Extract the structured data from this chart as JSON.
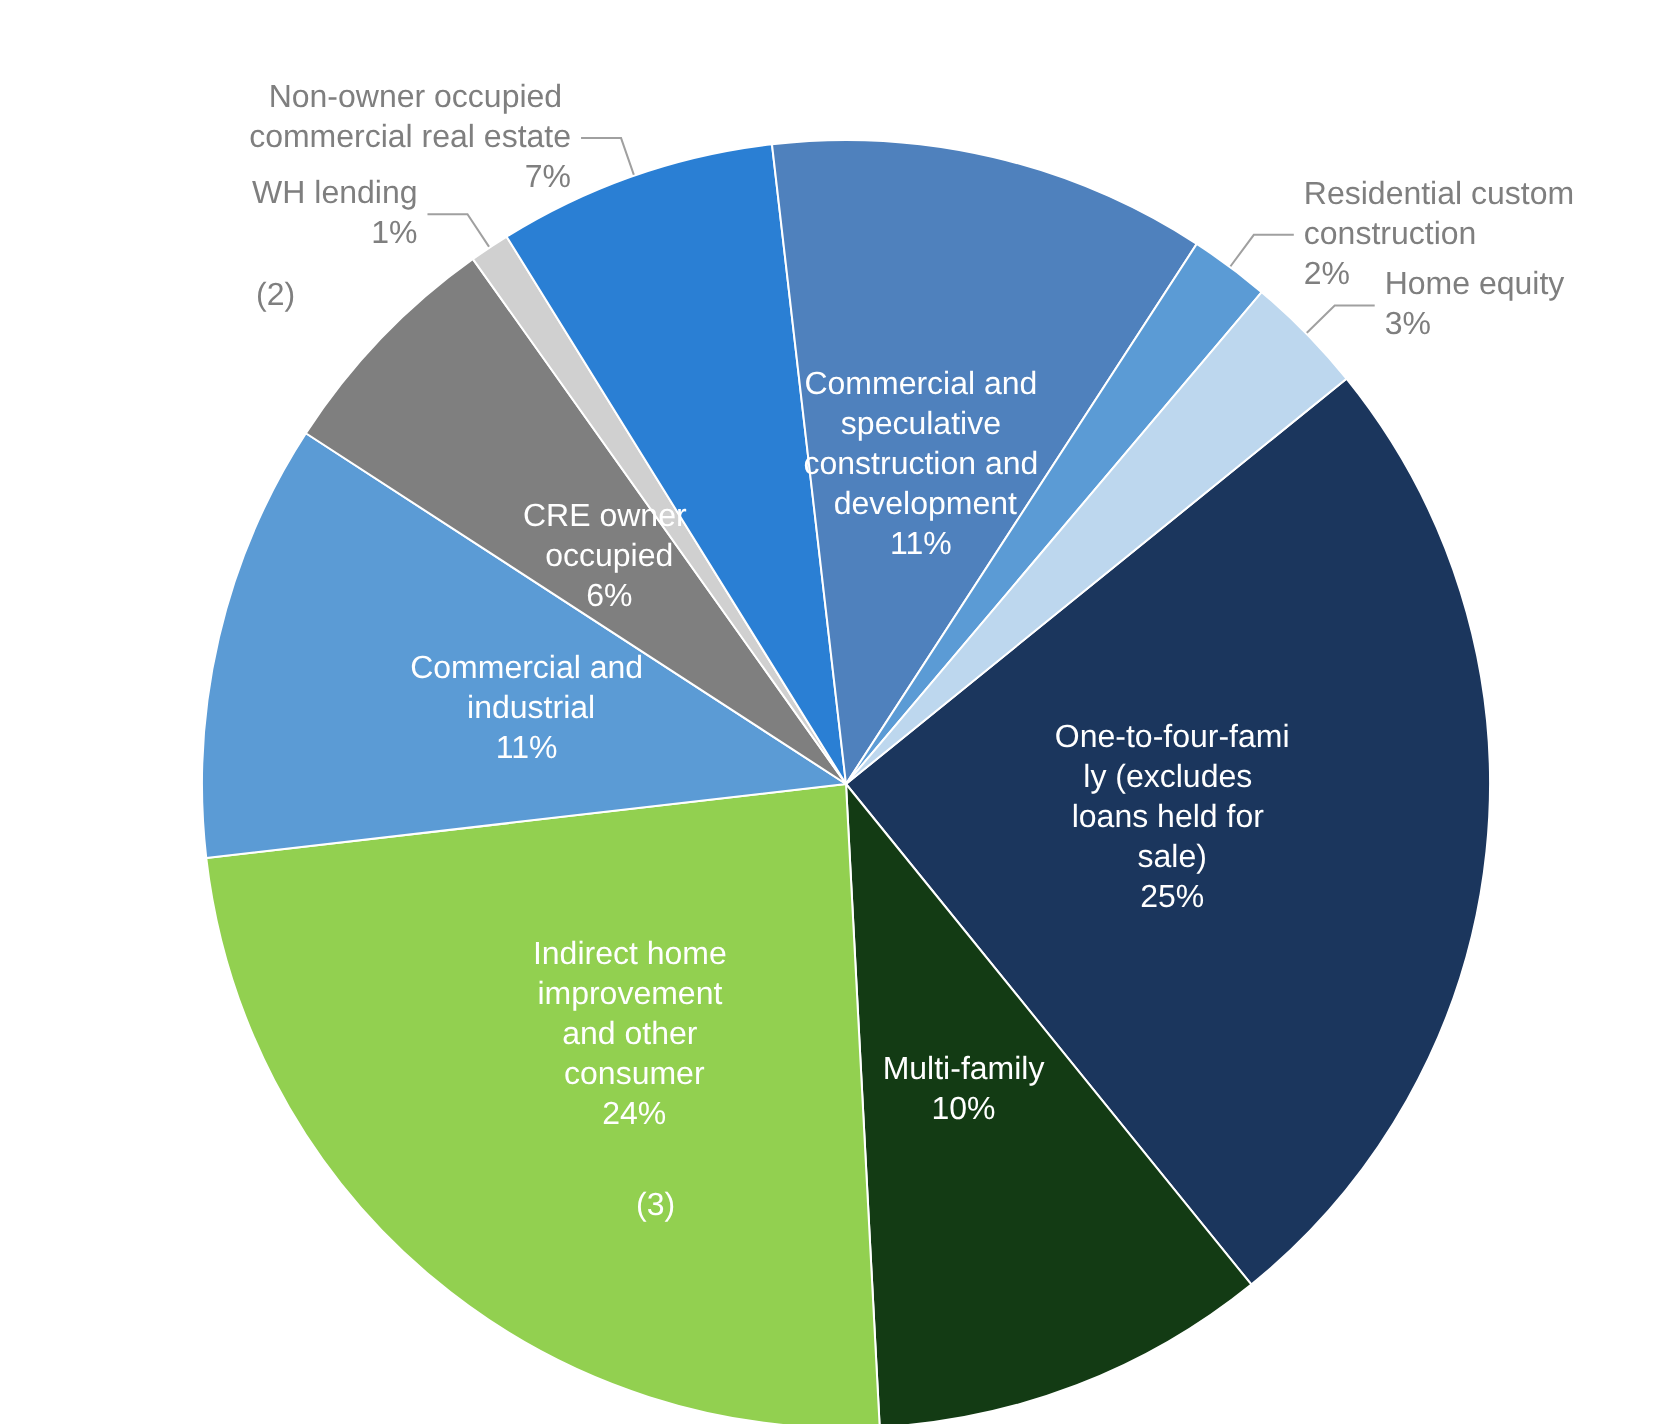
{
  "chart_data": {
    "type": "pie",
    "categories": [
      "One-to-four-family (excludes loans held for sale)",
      "Multi-family",
      "Indirect home improvement and other consumer",
      "Commercial and industrial",
      "CRE owner occupied",
      "WH lending",
      "Non-owner occupied commercial real estate",
      "Commercial and speculative construction and development",
      "Residential custom construction",
      "Home equity"
    ],
    "values": [
      25,
      10,
      24,
      11,
      6,
      1,
      7,
      11,
      2,
      3
    ],
    "value_labels": [
      "25%",
      "10%",
      "24%",
      "11%",
      "6%",
      "1%",
      "7%",
      "11%",
      "2%",
      "3%"
    ],
    "colors": [
      "#1b365d",
      "#133b14",
      "#92d050",
      "#5b9bd5",
      "#7f7f7f",
      "#d0d0d0",
      "#2a7fd4",
      "#4f81bd",
      "#5b9bd5",
      "#bdd7ee"
    ],
    "annotations": [
      "(2)",
      "(3)"
    ],
    "legend": false
  }
}
